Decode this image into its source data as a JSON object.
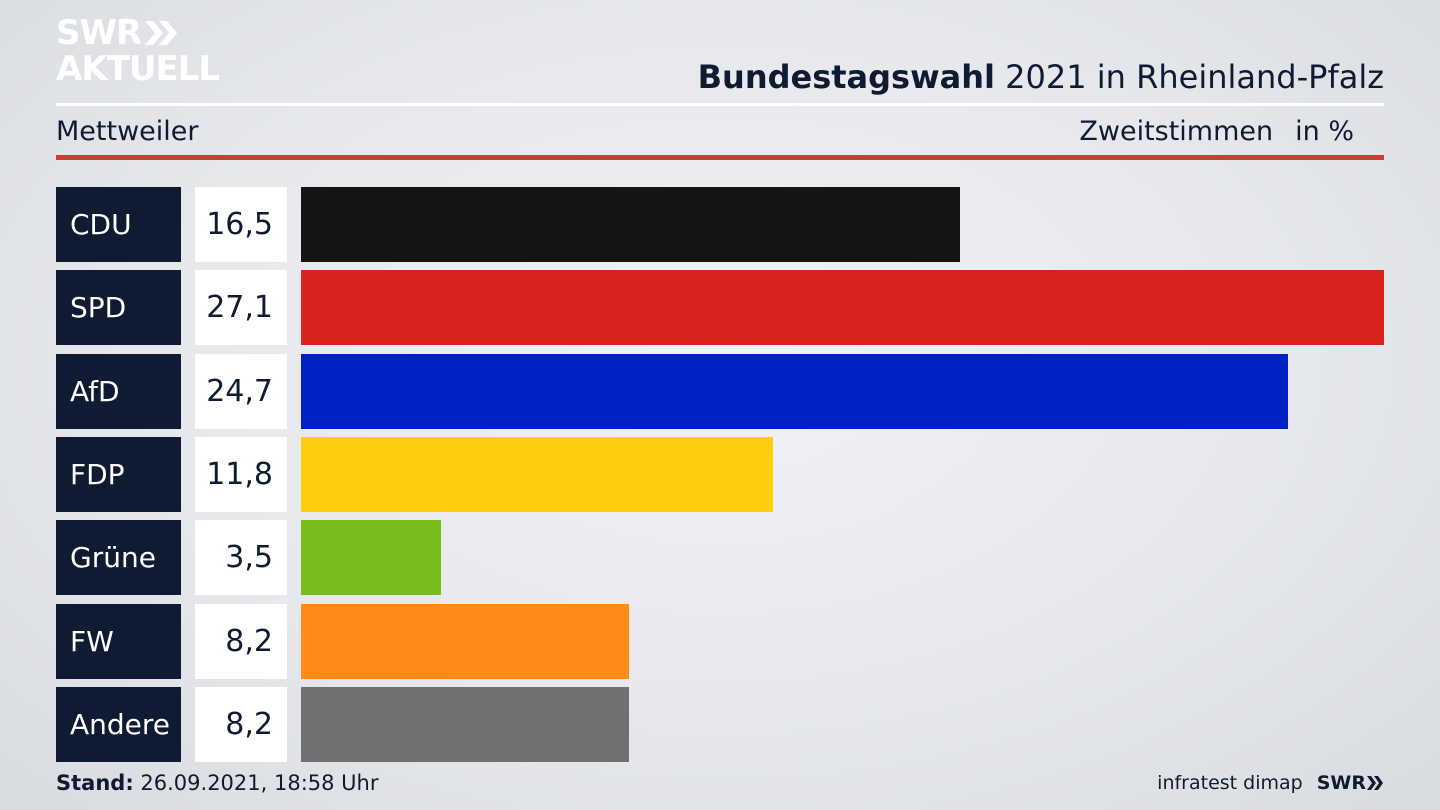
{
  "logo": {
    "line1": "SWR",
    "line2": "AKTUELL"
  },
  "header": {
    "title_bold": "Bundestagswahl",
    "title_rest": " 2021 in Rheinland-Pfalz",
    "region": "Mettweiler",
    "measure": "Zweitstimmen",
    "unit": "in %"
  },
  "footer": {
    "stand_label": "Stand:",
    "stand_value": " 26.09.2021, 18:58 Uhr",
    "source": "infratest dimap",
    "brand": "SWR"
  },
  "chart_data": {
    "type": "bar",
    "orientation": "horizontal",
    "title": "Bundestagswahl 2021 in Rheinland-Pfalz",
    "subtitle": "Mettweiler",
    "measure": "Zweitstimmen",
    "unit": "in %",
    "categories": [
      "CDU",
      "SPD",
      "AfD",
      "FDP",
      "Grüne",
      "FW",
      "Andere"
    ],
    "values": [
      16.5,
      27.1,
      24.7,
      11.8,
      3.5,
      8.2,
      8.2
    ],
    "labels": [
      "16,5",
      "27,1",
      "24,7",
      "11,8",
      "3,5",
      "8,2",
      "8,2"
    ],
    "colors": [
      "#141414",
      "#d82121",
      "#0021c6",
      "#fecd0b",
      "#78bd1d",
      "#fe8b17",
      "#707072"
    ],
    "xlim": [
      0,
      27.1
    ],
    "grid": false,
    "legend": "none"
  }
}
